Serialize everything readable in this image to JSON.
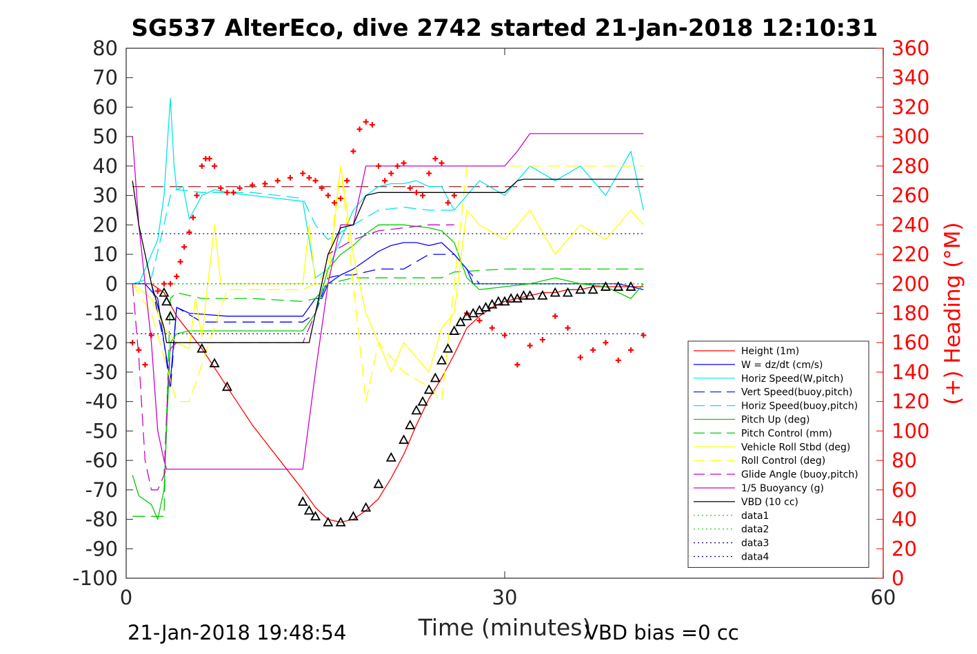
{
  "chart_data": {
    "type": "line",
    "title": "SG537 AlterEco, dive 2742 started 21-Jan-2018 12:10:31",
    "xlabel": "Time (minutes)",
    "ylabel_right": "(+) Heading (°M)",
    "xlim": [
      0,
      60
    ],
    "ylim": [
      -100,
      80
    ],
    "ylim_right": [
      0,
      360
    ],
    "xticks": [
      "0",
      "30",
      "60"
    ],
    "xtick_values": [
      0,
      30,
      60
    ],
    "yticks": [
      "80",
      "70",
      "60",
      "50",
      "40",
      "30",
      "20",
      "10",
      "0",
      "-10",
      "-20",
      "-30",
      "-40",
      "-50",
      "-60",
      "-70",
      "-80",
      "-90",
      "-100"
    ],
    "ytick_values": [
      80,
      70,
      60,
      50,
      40,
      30,
      20,
      10,
      0,
      -10,
      -20,
      -30,
      -40,
      -50,
      -60,
      -70,
      -80,
      -90,
      -100
    ],
    "yticks_right": [
      "360",
      "340",
      "320",
      "300",
      "280",
      "260",
      "240",
      "220",
      "200",
      "180",
      "160",
      "140",
      "120",
      "100",
      "80",
      "60",
      "40",
      "20",
      "0"
    ],
    "ytick_values_right": [
      360,
      340,
      320,
      300,
      280,
      260,
      240,
      220,
      200,
      180,
      160,
      140,
      120,
      100,
      80,
      60,
      40,
      20,
      0
    ],
    "grid": false,
    "legend_position": "bottom-right",
    "footer_left": "21-Jan-2018 19:48:54",
    "footer_right": "VBD bias =0 cc",
    "series": [
      {
        "name": "Height (1m)",
        "color": "#ff0000",
        "style": "solid",
        "x": [
          0.5,
          2,
          3,
          4,
          6,
          8,
          10,
          12,
          14,
          15,
          16,
          17,
          18,
          19,
          20,
          21,
          22,
          23,
          24,
          25,
          26,
          27,
          28,
          29,
          30,
          31,
          32,
          33,
          34,
          35,
          36,
          37,
          38,
          39,
          40,
          41
        ],
        "y": [
          0,
          0,
          -3,
          -11,
          -22,
          -35,
          -48,
          -59,
          -70,
          -76,
          -80,
          -81,
          -80,
          -77,
          -73,
          -66,
          -58,
          -48,
          -39,
          -32,
          -24,
          -15,
          -11,
          -8,
          -6,
          -5,
          -4,
          -3,
          -3,
          -2,
          -2,
          -1,
          -1,
          -1,
          -1,
          -1
        ]
      },
      {
        "name": "W = dz/dt (cm/s)",
        "color": "#0000ff",
        "style": "solid",
        "x": [
          0.5,
          1.5,
          2.5,
          3,
          3.5,
          4,
          5,
          8,
          11,
          14,
          14.5,
          15,
          15.5,
          16,
          17,
          18,
          19,
          20,
          21,
          22,
          23,
          24,
          25,
          26,
          27,
          27.5,
          28,
          30,
          33,
          36,
          39,
          41
        ],
        "y": [
          0,
          0,
          -5,
          -20,
          -33,
          -8,
          -10,
          -11,
          -11,
          -11,
          -8,
          -5,
          -5,
          0,
          3,
          5,
          8,
          11,
          13,
          14,
          14,
          13,
          14,
          10,
          5,
          0,
          0,
          0,
          0,
          0,
          0,
          -2
        ]
      },
      {
        "name": "Horiz Speed(W,pitch)",
        "color": "#00e6e6",
        "style": "solid",
        "x": [
          0.5,
          1,
          2,
          2.5,
          3,
          3.3,
          3.5,
          3.8,
          4,
          4.5,
          5,
          6,
          7,
          8,
          10,
          12,
          14,
          14.5,
          15,
          16,
          17,
          18,
          19,
          20,
          21,
          22,
          23,
          24,
          25,
          26,
          27,
          28,
          30,
          32,
          34,
          36,
          38,
          40,
          41
        ],
        "y": [
          0,
          0,
          10,
          15,
          30,
          50,
          63,
          40,
          32,
          33,
          22,
          30,
          32,
          31,
          30,
          29,
          28,
          15,
          2,
          5,
          15,
          25,
          30,
          33,
          34,
          34,
          35,
          33,
          33,
          25,
          30,
          35,
          30,
          40,
          35,
          40,
          30,
          45,
          25
        ]
      },
      {
        "name": "Vert Speed(buoy,pitch)",
        "color": "#0000ff",
        "style": "dashed",
        "x": [
          0.5,
          2,
          3,
          3.5,
          4,
          6,
          10,
          14,
          15,
          16,
          17,
          18,
          20,
          22,
          24,
          25,
          26,
          27,
          28
        ],
        "y": [
          0,
          0,
          -20,
          -36,
          -8,
          -13,
          -13,
          -13,
          -10,
          2,
          3,
          3,
          5,
          5,
          10,
          10,
          10,
          5,
          0
        ]
      },
      {
        "name": "Horiz Speed(buoy,pitch)",
        "color": "#00e6e6",
        "style": "dashed",
        "x": [
          0.5,
          2,
          3,
          3.5,
          4,
          6,
          10,
          14,
          15,
          16,
          18,
          20,
          22,
          24,
          26
        ],
        "y": [
          0,
          2,
          20,
          30,
          32,
          31,
          31,
          29,
          20,
          15,
          20,
          25,
          26,
          25,
          25
        ]
      },
      {
        "name": "Pitch Up (deg)",
        "color": "#00cc00",
        "style": "solid",
        "x": [
          0.5,
          1,
          2,
          2.5,
          3,
          3.3,
          3.5,
          4,
          5,
          8,
          11,
          14,
          15,
          16,
          17,
          18,
          19,
          20,
          22,
          24,
          25,
          26,
          27,
          28,
          30,
          32,
          34,
          36,
          38,
          40,
          41
        ],
        "y": [
          -65,
          -72,
          -75,
          -80,
          -70,
          -40,
          -20,
          -17,
          -16,
          -16,
          -16,
          -16,
          -10,
          5,
          10,
          13,
          17,
          20,
          20,
          19,
          18,
          14,
          2,
          -2,
          -1,
          0,
          2,
          0,
          -1,
          -5,
          0
        ]
      },
      {
        "name": "Pitch Control (mm)",
        "color": "#00cc00",
        "style": "dashed",
        "x": [
          0.5,
          2,
          3,
          3.2,
          3.5,
          4,
          6,
          10,
          14,
          15,
          16,
          18,
          20,
          25,
          26,
          30,
          35,
          41
        ],
        "y": [
          -79,
          -79,
          -79,
          -45,
          -5,
          -3,
          -5,
          -5,
          -6,
          -5,
          0,
          2,
          2,
          2,
          4,
          5,
          5,
          5
        ]
      },
      {
        "name": "Vehicle Roll Stbd (deg)",
        "color": "#ffff00",
        "style": "solid",
        "x": [
          0.5,
          2,
          3,
          4,
          5,
          5.5,
          6,
          7,
          7.5,
          8,
          10,
          13,
          14,
          14.5,
          15,
          16,
          17,
          18,
          19,
          20,
          21,
          22,
          23,
          24,
          25,
          26,
          27,
          28,
          30,
          32,
          34,
          36,
          38,
          40,
          41
        ],
        "y": [
          0,
          -5,
          -15,
          -20,
          -22,
          -5,
          -18,
          20,
          0,
          0,
          0,
          0,
          0,
          20,
          0,
          0,
          40,
          10,
          -10,
          -20,
          -30,
          -20,
          -25,
          -30,
          -15,
          -10,
          25,
          20,
          15,
          25,
          10,
          20,
          15,
          25,
          20
        ]
      },
      {
        "name": "Roll Control (deg)",
        "color": "#ffff00",
        "style": "dashed",
        "x": [
          0.5,
          2,
          3,
          4,
          5,
          8,
          10,
          14,
          15,
          16,
          17,
          18,
          19,
          20,
          22,
          24,
          25,
          26,
          27,
          30,
          35,
          41
        ],
        "y": [
          0,
          -10,
          -25,
          -40,
          -40,
          -2,
          -2,
          -2,
          0,
          5,
          40,
          0,
          -40,
          -20,
          -30,
          -35,
          -40,
          0,
          40,
          40,
          40,
          40
        ]
      },
      {
        "name": "Glide Angle (buoy,pitch)",
        "color": "#cc00cc",
        "style": "dashed",
        "x": [
          0.5,
          1,
          1.5,
          2,
          2.5,
          3,
          3.3,
          3.5,
          4,
          6,
          10,
          14,
          15,
          16,
          18,
          20,
          22,
          24,
          25,
          26
        ],
        "y": [
          0,
          -25,
          -60,
          -70,
          -70,
          -65,
          -35,
          -22,
          -20,
          -20,
          -20,
          -20,
          -10,
          10,
          15,
          18,
          19,
          20,
          20,
          20
        ]
      },
      {
        "name": "1/5 Buoyancy (g)",
        "color": "#cc00cc",
        "style": "solid",
        "x": [
          0.5,
          1,
          2,
          2.5,
          3,
          3.2,
          3.5,
          6,
          10,
          14,
          15,
          16,
          17,
          18,
          19,
          30,
          31,
          32,
          35,
          38,
          41
        ],
        "y": [
          50,
          20,
          -20,
          -50,
          -60,
          -63,
          -63,
          -63,
          -63,
          -63,
          -30,
          0,
          20,
          20,
          40,
          40,
          45,
          51,
          51,
          51,
          51
        ]
      },
      {
        "name": "VBD (10 cc)",
        "color": "#000000",
        "style": "solid",
        "x": [
          0.5,
          1,
          2,
          3,
          3.2,
          4,
          8,
          12,
          14.5,
          15,
          16,
          17,
          18,
          19,
          20,
          25,
          30,
          31,
          31.5,
          35,
          41
        ],
        "y": [
          35,
          20,
          0,
          -15,
          -20,
          -20,
          -20,
          -20,
          -20,
          -10,
          10,
          19,
          20,
          30,
          31,
          31,
          31,
          35,
          35.5,
          35.5,
          35.5
        ]
      },
      {
        "name": "data1",
        "color": "#00cc00",
        "style": "dotted",
        "x": [
          0.5,
          41
        ],
        "y": [
          0,
          0
        ]
      },
      {
        "name": "data2",
        "color": "#00cc00",
        "style": "dotted",
        "x": [
          0.5,
          41
        ],
        "y": [
          0,
          0
        ]
      },
      {
        "name": "data3",
        "color": "#000080",
        "style": "dotted",
        "x": [
          0.5,
          41
        ],
        "y": [
          17,
          17
        ]
      },
      {
        "name": "data4",
        "color": "#000080",
        "style": "dotted",
        "x": [
          0.5,
          41
        ],
        "y": [
          -17,
          -17
        ]
      }
    ],
    "reference_lines": [
      {
        "color": "#8b0000",
        "style": "dashed",
        "y": 33,
        "x": [
          0.5,
          41
        ]
      }
    ],
    "heading_markers": {
      "color": "#ff0000",
      "marker": "+",
      "x": [
        0.5,
        1,
        1.5,
        2,
        2.5,
        3,
        3.5,
        4,
        4.3,
        4.6,
        5,
        5.3,
        5.6,
        6,
        6.3,
        6.6,
        7,
        7.5,
        8,
        8.5,
        9,
        10,
        11,
        12,
        13,
        14,
        14.5,
        15,
        15.5,
        16,
        16.5,
        17,
        17.5,
        18,
        18.5,
        19,
        19.5,
        20,
        20.5,
        21,
        21.5,
        22,
        22.5,
        23,
        23.5,
        24,
        24.5,
        25,
        25.5,
        26,
        27,
        28,
        29,
        30,
        31,
        32,
        33,
        34,
        35,
        36,
        37,
        38,
        39,
        40,
        41
      ],
      "y": [
        160,
        155,
        145,
        165,
        195,
        200,
        200,
        205,
        215,
        225,
        235,
        245,
        260,
        280,
        285,
        285,
        280,
        265,
        262,
        262,
        265,
        267,
        268,
        270,
        272,
        275,
        272,
        270,
        265,
        260,
        255,
        258,
        270,
        290,
        305,
        310,
        308,
        280,
        270,
        275,
        280,
        282,
        265,
        262,
        260,
        275,
        285,
        282,
        255,
        260,
        180,
        175,
        170,
        165,
        145,
        158,
        162,
        178,
        170,
        150,
        155,
        160,
        148,
        155,
        165
      ]
    },
    "triangle_markers": {
      "color": "#000000",
      "marker": "triangle",
      "x": [
        3,
        3.2,
        3.5,
        6,
        7,
        8,
        14,
        14.5,
        15,
        16,
        17,
        18,
        19,
        20,
        21,
        22,
        22.5,
        23,
        23.5,
        24,
        24.5,
        25,
        25.5,
        26,
        26.5,
        27,
        27.5,
        28,
        28.5,
        29,
        29.5,
        30,
        30.5,
        31,
        31.5,
        32,
        33,
        34,
        35,
        36,
        37,
        38,
        39,
        40
      ],
      "y": [
        -3,
        -6,
        -11,
        -22,
        -27,
        -35,
        -74,
        -77,
        -79,
        -81,
        -81,
        -79,
        -76,
        -68,
        -59,
        -53,
        -48,
        -43,
        -40,
        -36,
        -32,
        -26,
        -22,
        -16,
        -13,
        -11,
        -10,
        -9,
        -8,
        -7,
        -6,
        -6,
        -5,
        -5,
        -4,
        -4,
        -4,
        -3,
        -3,
        -2,
        -2,
        -1,
        -1,
        -1
      ]
    }
  }
}
